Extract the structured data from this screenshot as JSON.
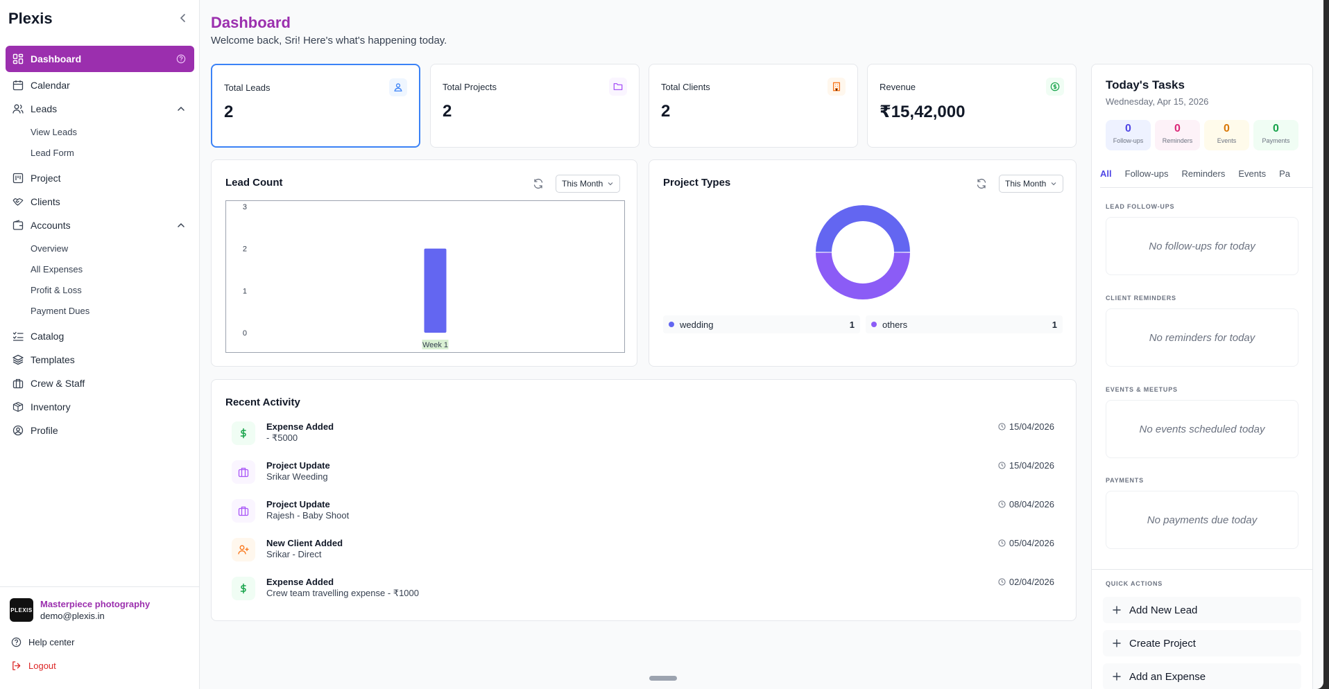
{
  "sidebar": {
    "brand": "Plexis",
    "nav": {
      "dashboard": "Dashboard",
      "calendar": "Calendar",
      "leads": "Leads",
      "view_leads": "View Leads",
      "lead_form": "Lead Form",
      "project": "Project",
      "clients": "Clients",
      "accounts": "Accounts",
      "overview": "Overview",
      "all_expenses": "All Expenses",
      "profit_loss": "Profit & Loss",
      "payment_dues": "Payment Dues",
      "catalog": "Catalog",
      "templates": "Templates",
      "crew_staff": "Crew & Staff",
      "inventory": "Inventory",
      "profile": "Profile"
    },
    "org": {
      "logo_text": "PLEXIS",
      "name": "Masterpiece photography",
      "email": "demo@plexis.in"
    },
    "help": "Help center",
    "logout": "Logout"
  },
  "header": {
    "title": "Dashboard",
    "subtitle": "Welcome back, Sri! Here's what's happening today."
  },
  "stats": [
    {
      "label": "Total Leads",
      "value": "2",
      "color": "#3b82f6"
    },
    {
      "label": "Total Projects",
      "value": "2",
      "color": "#a855f7"
    },
    {
      "label": "Total Clients",
      "value": "2",
      "color": "#f97316"
    },
    {
      "label": "Revenue",
      "value": "₹15,42,000",
      "color": "#16a34a"
    }
  ],
  "lead_count": {
    "title": "Lead Count",
    "filter": "This Month"
  },
  "project_types": {
    "title": "Project Types",
    "filter": "This Month"
  },
  "chart_data": [
    {
      "type": "bar",
      "title": "Lead Count",
      "categories": [
        "Week 1"
      ],
      "values": [
        2
      ],
      "ylim": [
        0,
        3
      ],
      "yticks": [
        "0",
        "1",
        "2",
        "3"
      ],
      "color": "#6366f1",
      "grid": false
    },
    {
      "type": "pie",
      "title": "Project Types",
      "labels": [
        "wedding",
        "others"
      ],
      "values": [
        1,
        1
      ],
      "colors": [
        "#6366f1",
        "#8b5cf6"
      ],
      "legend": "bottom"
    }
  ],
  "activity": {
    "title": "Recent Activity",
    "items": [
      {
        "title": "Expense Added",
        "desc": "- ₹5000",
        "date": "15/04/2026",
        "icon": "dollar-icon",
        "color": "#16a34a",
        "bg": "#f0fdf4"
      },
      {
        "title": "Project Update",
        "desc": "Srikar Weeding",
        "date": "15/04/2026",
        "icon": "briefcase-icon",
        "color": "#a855f7",
        "bg": "#faf5ff"
      },
      {
        "title": "Project Update",
        "desc": "Rajesh - Baby Shoot",
        "date": "08/04/2026",
        "icon": "briefcase-icon",
        "color": "#a855f7",
        "bg": "#faf5ff"
      },
      {
        "title": "New Client Added",
        "desc": "Srikar - Direct",
        "date": "05/04/2026",
        "icon": "user-plus-icon",
        "color": "#f97316",
        "bg": "#fff7ed"
      },
      {
        "title": "Expense Added",
        "desc": "Crew team travelling expense - ₹1000",
        "date": "02/04/2026",
        "icon": "dollar-icon",
        "color": "#16a34a",
        "bg": "#f0fdf4"
      }
    ]
  },
  "tasks": {
    "title": "Today's Tasks",
    "date": "Wednesday, Apr 15, 2026",
    "counts": [
      {
        "n": "0",
        "label": "Follow-ups",
        "color": "#4f46e5",
        "bg": "#eef2ff"
      },
      {
        "n": "0",
        "label": "Reminders",
        "color": "#db2777",
        "bg": "#fdf2f8"
      },
      {
        "n": "0",
        "label": "Events",
        "color": "#d97706",
        "bg": "#fffbeb"
      },
      {
        "n": "0",
        "label": "Payments",
        "color": "#16a34a",
        "bg": "#f0fdf4"
      }
    ],
    "tabs": [
      "All",
      "Follow-ups",
      "Reminders",
      "Events",
      "Pa"
    ],
    "sections": [
      {
        "label": "LEAD FOLLOW-UPS",
        "empty": "No follow-ups for today"
      },
      {
        "label": "CLIENT REMINDERS",
        "empty": "No reminders for today"
      },
      {
        "label": "EVENTS & MEETUPS",
        "empty": "No events scheduled today"
      },
      {
        "label": "PAYMENTS",
        "empty": "No payments due today"
      }
    ],
    "quick_actions_label": "QUICK ACTIONS",
    "quick_actions": [
      "Add New Lead",
      "Create Project",
      "Add an Expense"
    ]
  }
}
